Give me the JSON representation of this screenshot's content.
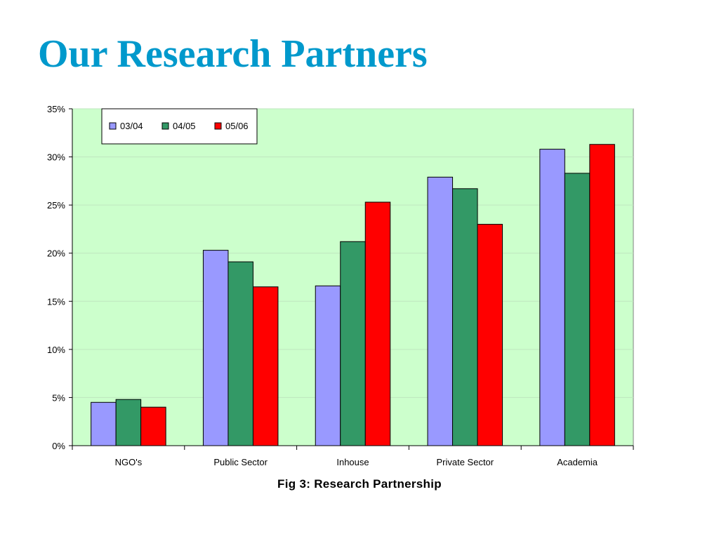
{
  "slide": {
    "title": "Our Research Partners",
    "caption": "Fig 3: Research Partnership"
  },
  "chart_data": {
    "type": "bar",
    "categories": [
      "NGO's",
      "Public Sector",
      "Inhouse",
      "Private Sector",
      "Academia"
    ],
    "series": [
      {
        "name": "03/04",
        "color": "#9999ff",
        "values": [
          4.5,
          20.3,
          16.6,
          27.9,
          30.8
        ]
      },
      {
        "name": "04/05",
        "color": "#339966",
        "values": [
          4.8,
          19.1,
          21.2,
          26.7,
          28.3
        ]
      },
      {
        "name": "05/06",
        "color": "#ff0000",
        "values": [
          4.0,
          16.5,
          25.3,
          23.0,
          31.3
        ]
      }
    ],
    "yticks": [
      "0%",
      "5%",
      "10%",
      "15%",
      "20%",
      "25%",
      "30%",
      "35%"
    ],
    "ylim": [
      0,
      35
    ],
    "yunit": "%",
    "plot_background": "#ccffcc",
    "grid": true,
    "legend_position": "top-left"
  }
}
